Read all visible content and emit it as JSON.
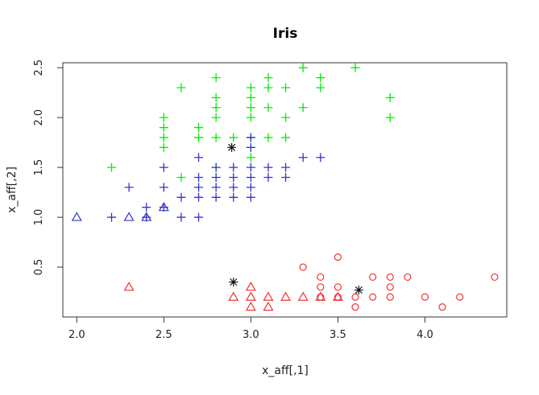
{
  "chart_data": {
    "type": "scatter",
    "title": "Iris",
    "xlabel": "x_aff[,1]",
    "ylabel": "x_aff[,2]",
    "xlim": [
      1.92,
      4.47
    ],
    "ylim": [
      0.0,
      2.55
    ],
    "xticks": [
      "2.0",
      "2.5",
      "3.0",
      "3.5",
      "4.0"
    ],
    "yticks": [
      "0.5",
      "1.0",
      "1.5",
      "2.0",
      "2.5"
    ],
    "grid": false,
    "colors": {
      "green": "#00ee00",
      "blue": "#3333cc",
      "red": "#ee3333",
      "black": "#111111"
    },
    "series": [
      {
        "marker": "plus",
        "color": "green",
        "points": [
          [
            2.2,
            1.5
          ],
          [
            2.5,
            2.0
          ],
          [
            2.5,
            1.9
          ],
          [
            2.5,
            1.8
          ],
          [
            2.5,
            1.7
          ],
          [
            2.6,
            2.3
          ],
          [
            2.6,
            1.4
          ],
          [
            2.7,
            1.9
          ],
          [
            2.7,
            1.8
          ],
          [
            2.8,
            2.4
          ],
          [
            2.8,
            2.2
          ],
          [
            2.8,
            2.1
          ],
          [
            2.8,
            2.0
          ],
          [
            2.8,
            1.8
          ],
          [
            2.8,
            1.5
          ],
          [
            2.9,
            1.8
          ],
          [
            3.0,
            2.3
          ],
          [
            3.0,
            2.2
          ],
          [
            3.0,
            2.1
          ],
          [
            3.0,
            2.0
          ],
          [
            3.0,
            1.8
          ],
          [
            3.0,
            1.6
          ],
          [
            3.1,
            2.4
          ],
          [
            3.1,
            2.3
          ],
          [
            3.1,
            2.1
          ],
          [
            3.1,
            1.8
          ],
          [
            3.2,
            2.3
          ],
          [
            3.2,
            2.0
          ],
          [
            3.2,
            1.8
          ],
          [
            3.3,
            2.5
          ],
          [
            3.3,
            2.1
          ],
          [
            3.4,
            2.4
          ],
          [
            3.4,
            2.3
          ],
          [
            3.6,
            2.5
          ],
          [
            3.8,
            2.2
          ],
          [
            3.8,
            2.0
          ]
        ]
      },
      {
        "marker": "plus",
        "color": "blue",
        "points": [
          [
            2.2,
            1.0
          ],
          [
            2.3,
            1.3
          ],
          [
            2.4,
            1.1
          ],
          [
            2.4,
            1.0
          ],
          [
            2.5,
            1.5
          ],
          [
            2.5,
            1.3
          ],
          [
            2.5,
            1.1
          ],
          [
            2.6,
            1.2
          ],
          [
            2.6,
            1.0
          ],
          [
            2.7,
            1.6
          ],
          [
            2.7,
            1.4
          ],
          [
            2.7,
            1.3
          ],
          [
            2.7,
            1.2
          ],
          [
            2.7,
            1.0
          ],
          [
            2.8,
            1.5
          ],
          [
            2.8,
            1.4
          ],
          [
            2.8,
            1.3
          ],
          [
            2.8,
            1.2
          ],
          [
            2.9,
            1.5
          ],
          [
            2.9,
            1.4
          ],
          [
            2.9,
            1.3
          ],
          [
            2.9,
            1.2
          ],
          [
            3.0,
            1.8
          ],
          [
            3.0,
            1.7
          ],
          [
            3.0,
            1.5
          ],
          [
            3.0,
            1.4
          ],
          [
            3.0,
            1.3
          ],
          [
            3.0,
            1.2
          ],
          [
            3.1,
            1.5
          ],
          [
            3.1,
            1.4
          ],
          [
            3.2,
            1.5
          ],
          [
            3.2,
            1.4
          ],
          [
            3.3,
            1.6
          ],
          [
            3.4,
            1.6
          ]
        ]
      },
      {
        "marker": "triangle",
        "color": "blue",
        "points": [
          [
            2.0,
            1.0
          ],
          [
            2.3,
            1.0
          ],
          [
            2.4,
            1.0
          ],
          [
            2.5,
            1.1
          ]
        ]
      },
      {
        "marker": "circle",
        "color": "red",
        "points": [
          [
            3.3,
            0.5
          ],
          [
            3.4,
            0.4
          ],
          [
            3.4,
            0.3
          ],
          [
            3.4,
            0.2
          ],
          [
            3.5,
            0.6
          ],
          [
            3.5,
            0.3
          ],
          [
            3.5,
            0.2
          ],
          [
            3.6,
            0.2
          ],
          [
            3.6,
            0.1
          ],
          [
            3.7,
            0.4
          ],
          [
            3.7,
            0.2
          ],
          [
            3.8,
            0.4
          ],
          [
            3.8,
            0.3
          ],
          [
            3.8,
            0.2
          ],
          [
            3.9,
            0.4
          ],
          [
            4.0,
            0.2
          ],
          [
            4.1,
            0.1
          ],
          [
            4.2,
            0.2
          ],
          [
            4.4,
            0.4
          ]
        ]
      },
      {
        "marker": "triangle",
        "color": "red",
        "points": [
          [
            2.3,
            0.3
          ],
          [
            2.9,
            0.2
          ],
          [
            3.0,
            0.3
          ],
          [
            3.0,
            0.2
          ],
          [
            3.0,
            0.1
          ],
          [
            3.1,
            0.2
          ],
          [
            3.1,
            0.1
          ],
          [
            3.2,
            0.2
          ],
          [
            3.3,
            0.2
          ],
          [
            3.4,
            0.2
          ],
          [
            3.5,
            0.2
          ]
        ]
      },
      {
        "marker": "star",
        "color": "black",
        "points": [
          [
            2.89,
            1.7
          ],
          [
            2.9,
            0.35
          ],
          [
            3.62,
            0.27
          ]
        ]
      }
    ]
  }
}
